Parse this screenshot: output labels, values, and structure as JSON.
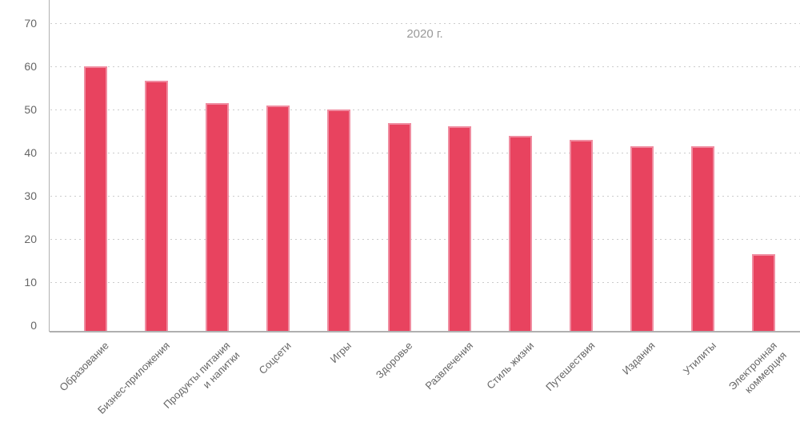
{
  "chart_data": {
    "type": "bar",
    "title": "2020 г.",
    "categories": [
      "Образование",
      "Бизнес-приложения",
      "Продукты питания\nи напитки",
      "Соцсети",
      "Игры",
      "Здоровье",
      "Развлечения",
      "Стиль жизни",
      "Путешествия",
      "Издания",
      "Утилиты",
      "Электронная\nкоммерция"
    ],
    "values": [
      60,
      56.7,
      51.6,
      51,
      50,
      47,
      46.1,
      44,
      43,
      41.5,
      41.5,
      16.5
    ],
    "xlabel": "",
    "ylabel": "",
    "ylim": [
      0,
      70
    ],
    "yticks": [
      0,
      10,
      20,
      30,
      40,
      50,
      60,
      70
    ],
    "grid": "horizontal-dotted",
    "legend": "none",
    "colors": {
      "bar": "#e8435f",
      "bar_edge": "#f08ca0",
      "grid": "#cccccc",
      "axis": "#b0b0b0",
      "tick_label": "#666666",
      "title": "#999999"
    }
  }
}
